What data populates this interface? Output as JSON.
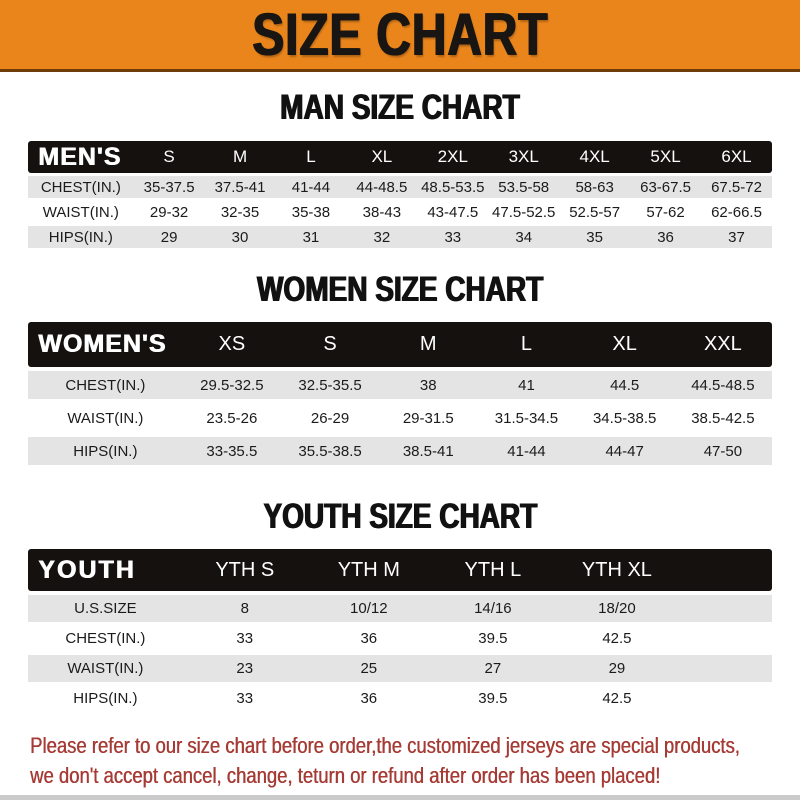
{
  "banner": {
    "title": "SIZE CHART",
    "bg_color": "#EA851C",
    "border_color": "#6E3D08"
  },
  "chart_data": [
    {
      "type": "table",
      "id": "men",
      "title": "MAN SIZE CHART",
      "header_label": "MEN'S",
      "columns": [
        "S",
        "M",
        "L",
        "XL",
        "2XL",
        "3XL",
        "4XL",
        "5XL",
        "6XL"
      ],
      "rows": [
        {
          "label": "CHEST(IN.)",
          "values": [
            "35-37.5",
            "37.5-41",
            "41-44",
            "44-48.5",
            "48.5-53.5",
            "53.5-58",
            "58-63",
            "63-67.5",
            "67.5-72"
          ]
        },
        {
          "label": "WAIST(IN.)",
          "values": [
            "29-32",
            "32-35",
            "35-38",
            "38-43",
            "43-47.5",
            "47.5-52.5",
            "52.5-57",
            "57-62",
            "62-66.5"
          ]
        },
        {
          "label": "HIPS(IN.)",
          "values": [
            "29",
            "30",
            "31",
            "32",
            "33",
            "34",
            "35",
            "36",
            "37"
          ]
        }
      ]
    },
    {
      "type": "table",
      "id": "women",
      "title": "WOMEN SIZE CHART",
      "header_label": "WOMEN'S",
      "columns": [
        "XS",
        "S",
        "M",
        "L",
        "XL",
        "XXL"
      ],
      "rows": [
        {
          "label": "CHEST(IN.)",
          "values": [
            "29.5-32.5",
            "32.5-35.5",
            "38",
            "41",
            "44.5",
            "44.5-48.5"
          ]
        },
        {
          "label": "WAIST(IN.)",
          "values": [
            "23.5-26",
            "26-29",
            "29-31.5",
            "31.5-34.5",
            "34.5-38.5",
            "38.5-42.5"
          ]
        },
        {
          "label": "HIPS(IN.)",
          "values": [
            "33-35.5",
            "35.5-38.5",
            "38.5-41",
            "41-44",
            "44-47",
            "47-50"
          ]
        }
      ]
    },
    {
      "type": "table",
      "id": "youth",
      "title": "YOUTH SIZE CHART",
      "header_label": "YOUTH",
      "columns": [
        "YTH S",
        "YTH M",
        "YTH L",
        "YTH XL"
      ],
      "rows": [
        {
          "label": "U.S.SIZE",
          "values": [
            "8",
            "10/12",
            "14/16",
            "18/20"
          ]
        },
        {
          "label": "CHEST(IN.)",
          "values": [
            "33",
            "36",
            "39.5",
            "42.5"
          ]
        },
        {
          "label": "WAIST(IN.)",
          "values": [
            "23",
            "25",
            "27",
            "29"
          ]
        },
        {
          "label": "HIPS(IN.)",
          "values": [
            "33",
            "36",
            "39.5",
            "42.5"
          ]
        }
      ]
    }
  ],
  "footer": {
    "color": "#A63B35",
    "lines": [
      "Please refer to our size chart before order,the customized jerseys are special products,",
      "we don't accept cancel, change, teturn or refund after order has been placed!"
    ]
  }
}
